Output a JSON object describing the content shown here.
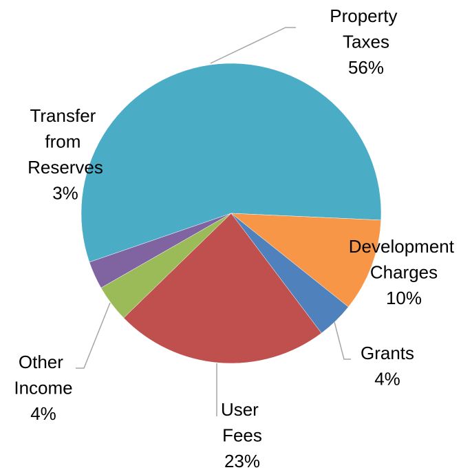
{
  "chart_data": {
    "type": "pie",
    "categories": [
      "Property Taxes",
      "Development Charges",
      "Grants",
      "User Fees",
      "Other Income",
      "Transfer from Reserves"
    ],
    "values": [
      56,
      10,
      4,
      23,
      4,
      3
    ],
    "value_labels": [
      "56%",
      "10%",
      "4%",
      "23%",
      "4%",
      "3%"
    ],
    "colors": [
      "#4bacc6",
      "#f79646",
      "#4f81bd",
      "#c0504d",
      "#9bbb59",
      "#8064a2"
    ]
  }
}
